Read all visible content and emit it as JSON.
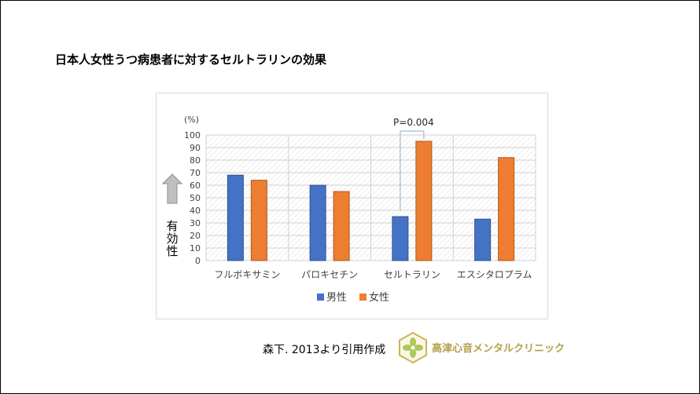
{
  "page_title": "日本人女性うつ病患者に対するセルトラリンの効果",
  "citation": "森下. 2013より引用作成",
  "clinic_name": "高津心音メンタルクリニック",
  "chart_data": {
    "type": "bar",
    "title": "",
    "ylabel": "有効性",
    "yunit": "(%)",
    "ylim": [
      0,
      100
    ],
    "ytick_step": 10,
    "grid": true,
    "legend_position": "bottom",
    "categories": [
      "フルボキサミン",
      "パロキセチン",
      "セルトラリン",
      "エスシタロプラム"
    ],
    "series": [
      {
        "name": "男性",
        "color": "#4472c4",
        "values": [
          68,
          60,
          35,
          33
        ]
      },
      {
        "name": "女性",
        "color": "#ed7d31",
        "values": [
          64,
          55,
          95,
          82
        ]
      }
    ],
    "annotation": {
      "text": "P=0.004",
      "category_index": 2
    }
  }
}
